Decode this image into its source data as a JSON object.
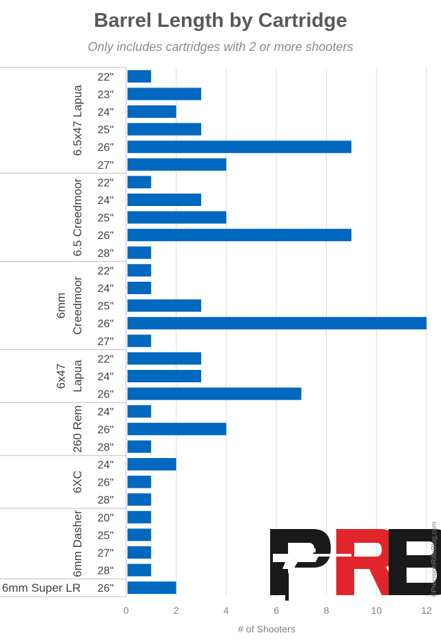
{
  "chart_data": {
    "type": "bar",
    "orientation": "horizontal",
    "title": "Barrel Length by Cartridge",
    "subtitle": "Only includes cartridges with 2 or more shooters",
    "xlabel": "# of Shooters",
    "ylabel": "",
    "xlim": [
      0,
      12
    ],
    "x_ticks": [
      0,
      2,
      4,
      6,
      8,
      10,
      12
    ],
    "grid": true,
    "color": "#0068bf",
    "groups": [
      {
        "name": "6.5x47 Lapua",
        "name_lines": [
          "6.5x47 Lapua"
        ],
        "categories": [
          "22\"",
          "23\"",
          "24\"",
          "25\"",
          "26\"",
          "27\""
        ],
        "values": [
          1,
          3,
          2,
          3,
          9,
          4
        ]
      },
      {
        "name": "6.5 Creedmoor",
        "name_lines": [
          "6.5 Creedmoor"
        ],
        "categories": [
          "22\"",
          "24\"",
          "25\"",
          "26\"",
          "28\""
        ],
        "values": [
          1,
          3,
          4,
          9,
          1
        ]
      },
      {
        "name": "6mm Creedmoor",
        "name_lines": [
          "6mm",
          "Creedmoor"
        ],
        "categories": [
          "22\"",
          "24\"",
          "25\"",
          "26\"",
          "27\""
        ],
        "values": [
          1,
          1,
          3,
          12,
          1
        ]
      },
      {
        "name": "6x47 Lapua",
        "name_lines": [
          "6x47",
          "Lapua"
        ],
        "categories": [
          "22\"",
          "24\"",
          "26\""
        ],
        "values": [
          3,
          3,
          7
        ]
      },
      {
        "name": "260 Rem",
        "name_lines": [
          "260 Rem"
        ],
        "categories": [
          "24\"",
          "26\"",
          "28\""
        ],
        "values": [
          1,
          4,
          1
        ]
      },
      {
        "name": "6XC",
        "name_lines": [
          "6XC"
        ],
        "categories": [
          "24\"",
          "26\"",
          "28\""
        ],
        "values": [
          2,
          1,
          1
        ]
      },
      {
        "name": "6mm Dasher",
        "name_lines": [
          "6mm Dasher"
        ],
        "categories": [
          "20\"",
          "25\"",
          "27\"",
          "28\""
        ],
        "values": [
          1,
          1,
          1,
          1
        ]
      },
      {
        "name": "6mm Super LR",
        "name_lines": [
          "6mm Super LR"
        ],
        "horizontal_label": true,
        "categories": [
          "26\""
        ],
        "values": [
          2
        ]
      }
    ]
  },
  "logo": {
    "text": "PRB",
    "colors": {
      "primary": "#1a1a1a",
      "accent": "#e0262b"
    }
  },
  "copyright": "©PrecisionRifleBlog.com"
}
